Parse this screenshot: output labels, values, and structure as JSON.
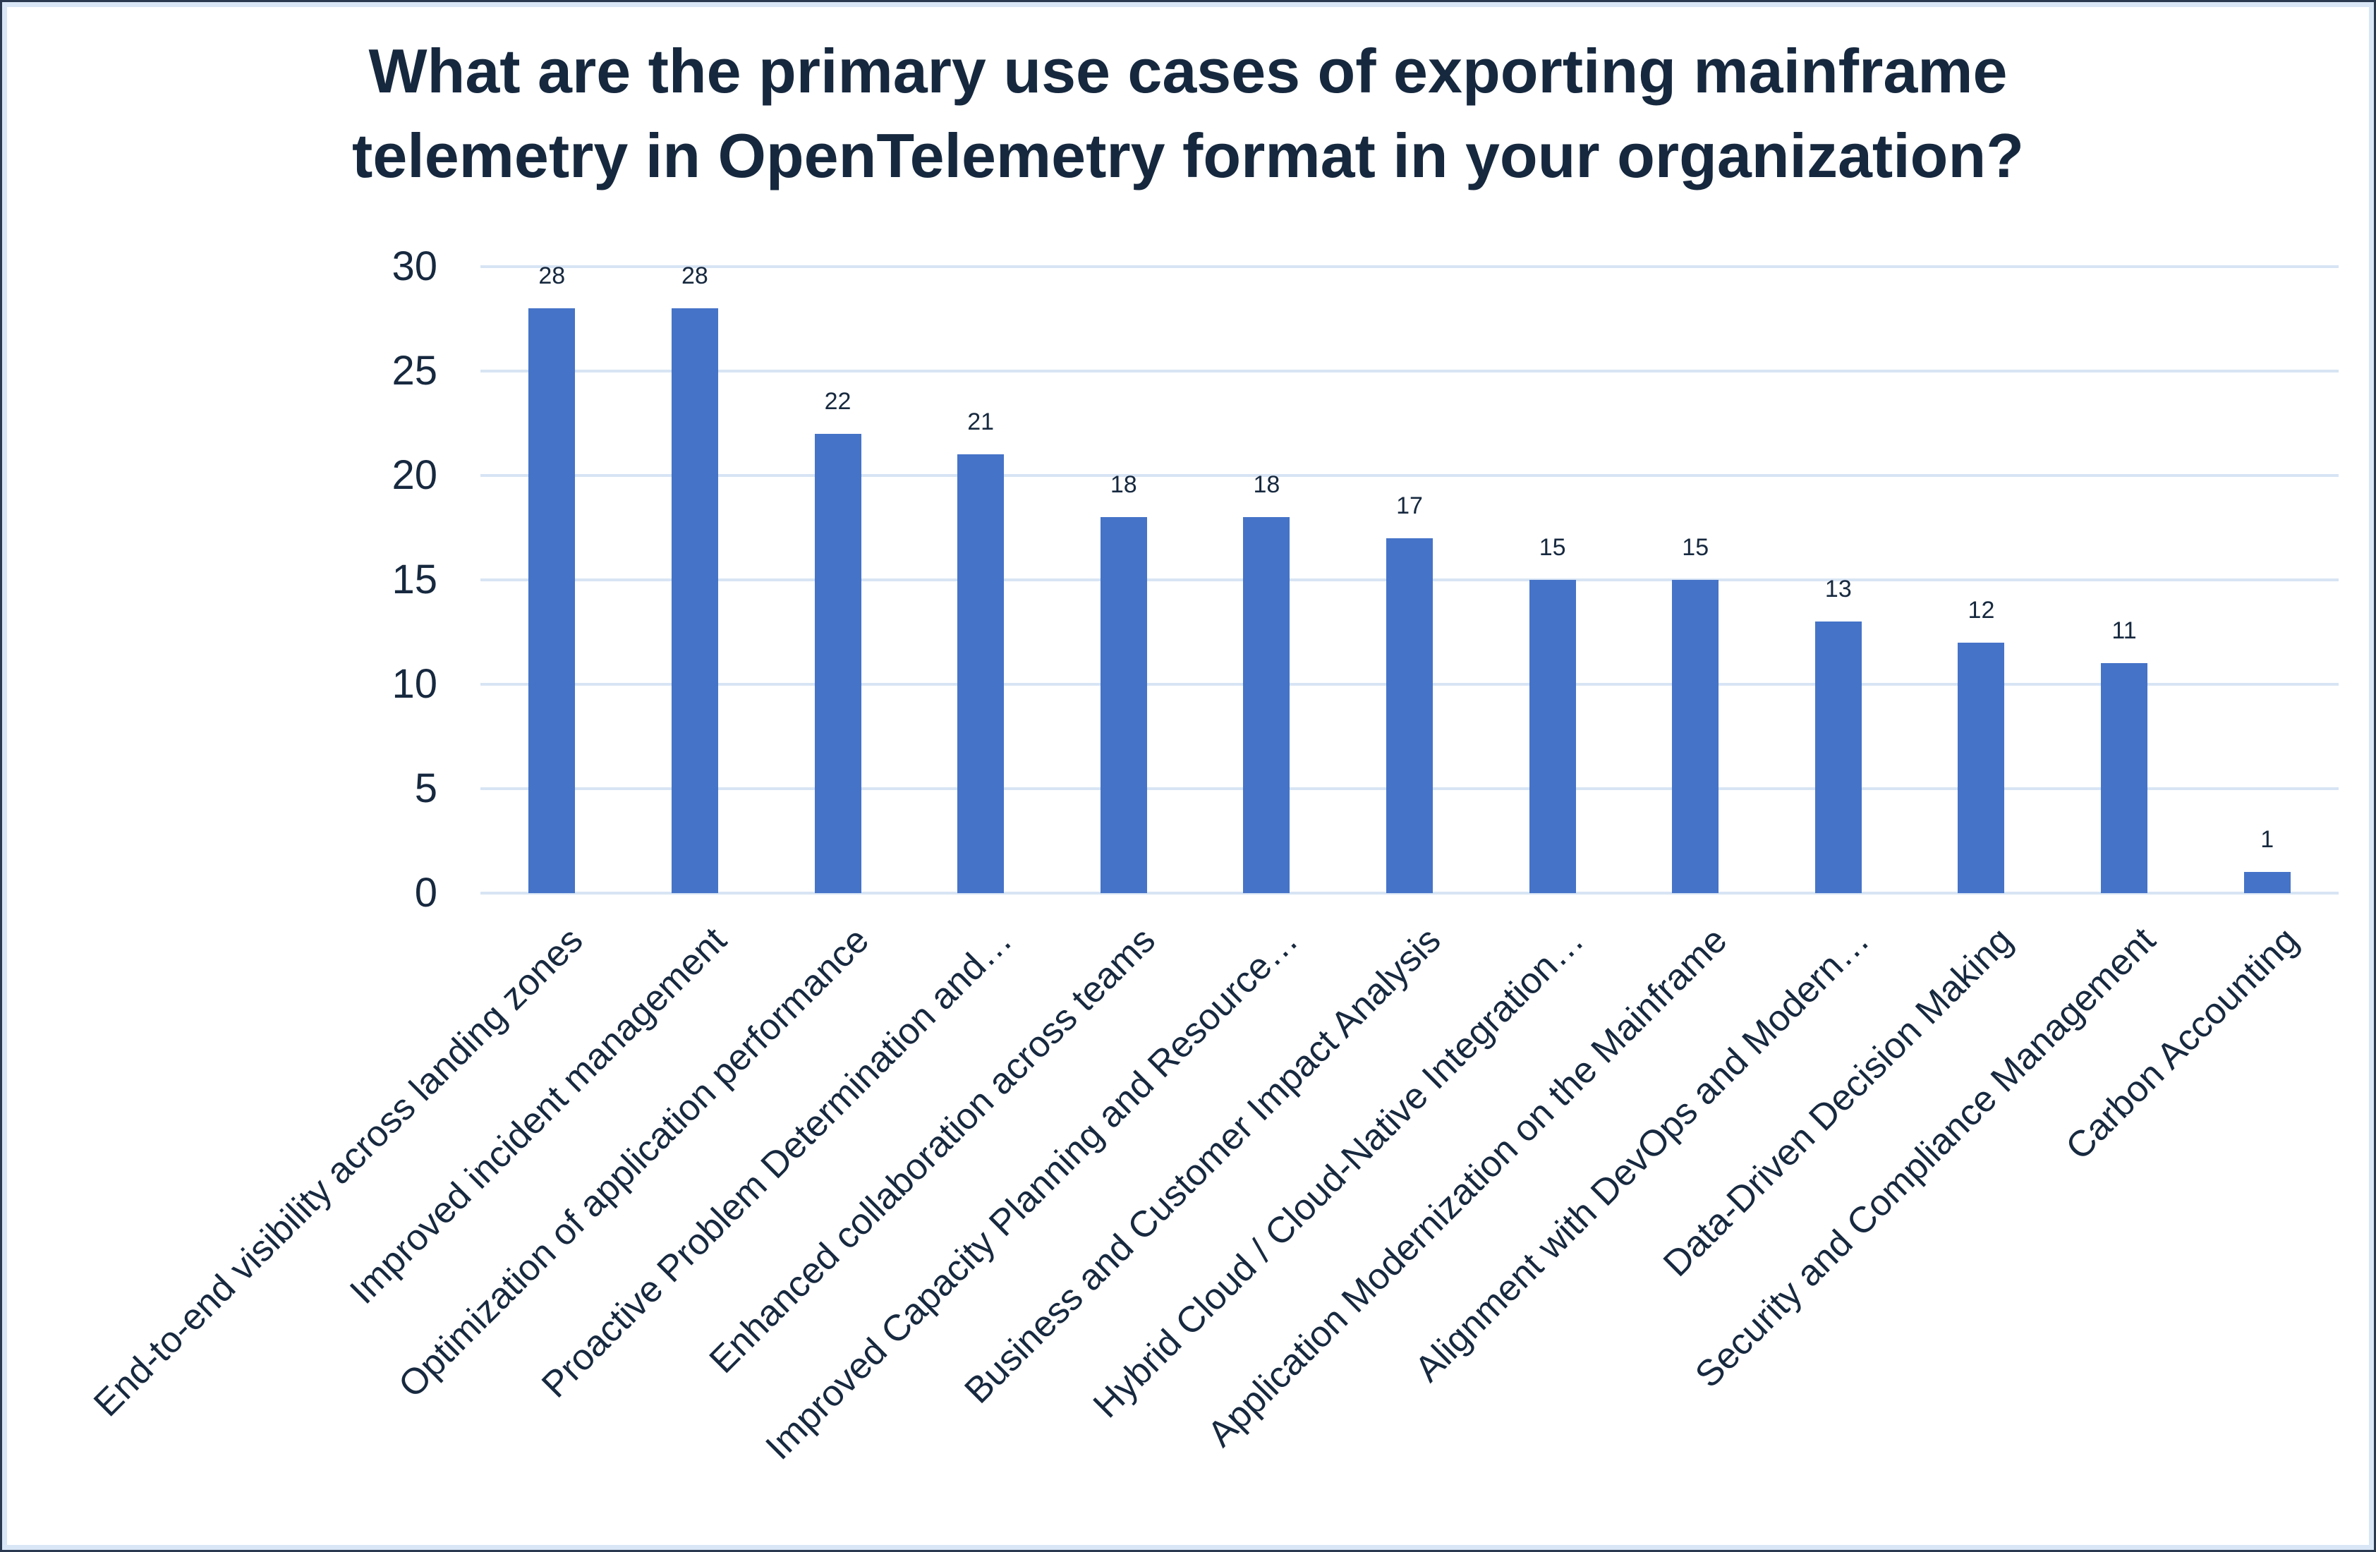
{
  "chart_data": {
    "type": "bar",
    "title": "What are the primary use cases of exporting mainframe telemetry in OpenTelemetry format in your organization?",
    "title_lines": [
      "What are the primary use cases of exporting mainframe",
      "telemetry in OpenTelemetry format in your organization?"
    ],
    "categories": [
      "End-to-end visibility across landing zones",
      "Improved incident management",
      "Optimization of application performance",
      "Proactive Problem Determination and…",
      "Enhanced collaboration across teams",
      "Improved Capacity Planning and Resource…",
      "Business and Customer Impact Analysis",
      "Hybrid Cloud / Cloud-Native Integration…",
      "Application Modernization on the Mainframe",
      "Alignment with DevOps and Modern…",
      "Data-Driven Decision Making",
      "Security and Compliance Management",
      "Carbon Accounting"
    ],
    "values": [
      28,
      28,
      22,
      21,
      18,
      18,
      17,
      15,
      15,
      13,
      12,
      11,
      1
    ],
    "data_labels": [
      28,
      28,
      22,
      21,
      18,
      18,
      17,
      15,
      15,
      13,
      12,
      11,
      1
    ],
    "xlabel": "",
    "ylabel": "",
    "ylim": [
      0,
      30
    ],
    "yticks": [
      0,
      5,
      10,
      15,
      20,
      25,
      30
    ],
    "grid": true,
    "legend_position": "none",
    "colors": {
      "bar": "#4573c8",
      "gridline": "#d7e4f4",
      "text": "#17293f",
      "title_text": "#16283e",
      "canvas_border": "#2a3950",
      "canvas_inner_border": "#d9e6f6",
      "background": "#ffffff"
    }
  }
}
